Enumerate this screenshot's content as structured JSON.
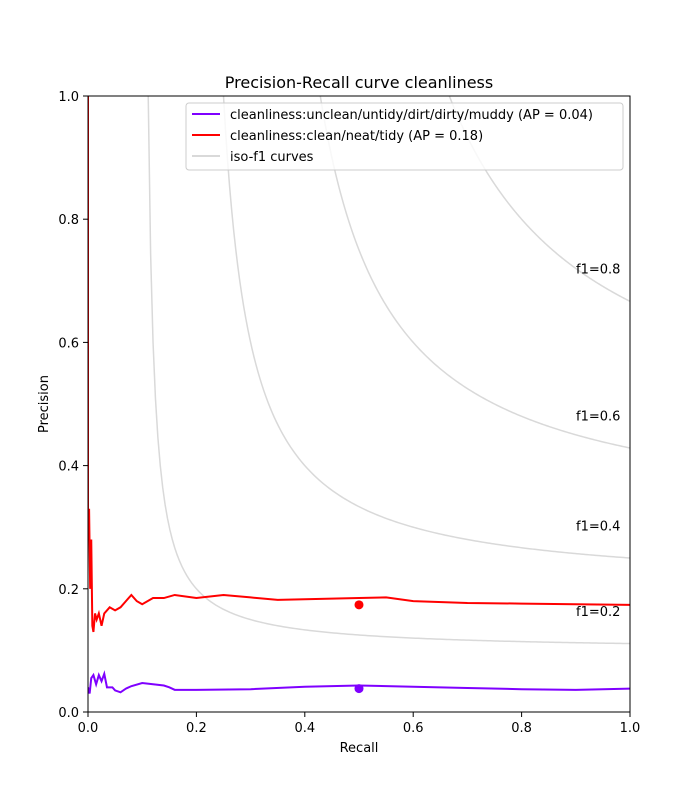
{
  "chart_data": {
    "type": "line",
    "title": "Precision-Recall curve cleanliness",
    "xlabel": "Recall",
    "ylabel": "Precision",
    "xlim": [
      0.0,
      1.0
    ],
    "ylim": [
      0.0,
      1.0
    ],
    "xticks": [
      "0.0",
      "0.2",
      "0.4",
      "0.6",
      "0.8",
      "1.0"
    ],
    "yticks": [
      "0.0",
      "0.2",
      "0.4",
      "0.6",
      "0.8",
      "1.0"
    ],
    "legend_position": "top-right",
    "grid": false,
    "series": [
      {
        "name": "cleanliness:unclean/untidy/dirt/dirty/muddy (AP = 0.04)",
        "color": "#7f00ff",
        "points": [
          [
            0.0,
            0.04
          ],
          [
            0.003,
            0.03
          ],
          [
            0.006,
            0.055
          ],
          [
            0.01,
            0.06
          ],
          [
            0.015,
            0.045
          ],
          [
            0.02,
            0.06
          ],
          [
            0.025,
            0.05
          ],
          [
            0.03,
            0.062
          ],
          [
            0.035,
            0.04
          ],
          [
            0.045,
            0.04
          ],
          [
            0.05,
            0.035
          ],
          [
            0.06,
            0.032
          ],
          [
            0.07,
            0.038
          ],
          [
            0.08,
            0.042
          ],
          [
            0.1,
            0.047
          ],
          [
            0.12,
            0.045
          ],
          [
            0.14,
            0.043
          ],
          [
            0.15,
            0.04
          ],
          [
            0.16,
            0.036
          ],
          [
            0.2,
            0.036
          ],
          [
            0.3,
            0.037
          ],
          [
            0.4,
            0.041
          ],
          [
            0.5,
            0.043
          ],
          [
            0.6,
            0.041
          ],
          [
            0.7,
            0.039
          ],
          [
            0.8,
            0.037
          ],
          [
            0.9,
            0.036
          ],
          [
            1.0,
            0.038
          ]
        ],
        "marker": [
          0.5,
          0.038
        ]
      },
      {
        "name": "cleanliness:clean/neat/tidy (AP = 0.18)",
        "color": "#ff0000",
        "points": [
          [
            0.0,
            1.0
          ],
          [
            0.0,
            0.3
          ],
          [
            0.002,
            0.33
          ],
          [
            0.004,
            0.2
          ],
          [
            0.006,
            0.28
          ],
          [
            0.008,
            0.14
          ],
          [
            0.01,
            0.13
          ],
          [
            0.013,
            0.16
          ],
          [
            0.016,
            0.15
          ],
          [
            0.02,
            0.16
          ],
          [
            0.025,
            0.14
          ],
          [
            0.03,
            0.16
          ],
          [
            0.04,
            0.17
          ],
          [
            0.05,
            0.165
          ],
          [
            0.06,
            0.17
          ],
          [
            0.07,
            0.18
          ],
          [
            0.08,
            0.19
          ],
          [
            0.09,
            0.18
          ],
          [
            0.1,
            0.175
          ],
          [
            0.12,
            0.185
          ],
          [
            0.14,
            0.185
          ],
          [
            0.16,
            0.19
          ],
          [
            0.2,
            0.185
          ],
          [
            0.25,
            0.19
          ],
          [
            0.3,
            0.186
          ],
          [
            0.35,
            0.182
          ],
          [
            0.4,
            0.183
          ],
          [
            0.5,
            0.185
          ],
          [
            0.55,
            0.186
          ],
          [
            0.6,
            0.18
          ],
          [
            0.7,
            0.177
          ],
          [
            0.8,
            0.176
          ],
          [
            0.9,
            0.175
          ],
          [
            1.0,
            0.174
          ]
        ],
        "marker": [
          0.5,
          0.174
        ]
      }
    ],
    "iso_f1_legend": "iso-f1 curves",
    "iso_f1": [
      {
        "f1": 0.2,
        "label": "f1=0.2"
      },
      {
        "f1": 0.4,
        "label": "f1=0.4"
      },
      {
        "f1": 0.6,
        "label": "f1=0.6"
      },
      {
        "f1": 0.8,
        "label": "f1=0.8"
      }
    ]
  }
}
